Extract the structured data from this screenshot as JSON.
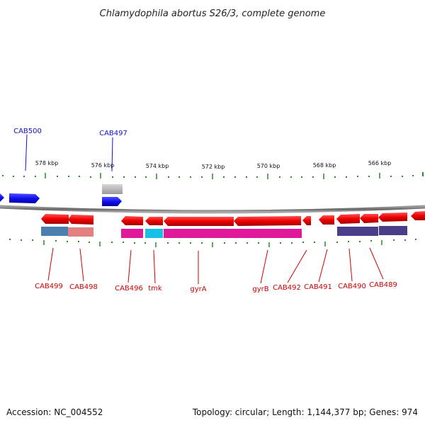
{
  "title": "Chlamydophila abortus S26/3, complete genome",
  "accession": "Accession: NC_004552",
  "topology": "Topology: circular; Length: 1,144,377 bp; Genes: 974",
  "ticks": [
    "578 kbp",
    "576 kbp",
    "574 kbp",
    "572 kbp",
    "570 kbp",
    "568 kbp",
    "566 kbp"
  ],
  "colors": {
    "forward_gene": "#1010ee",
    "reverse_gene": "#ee0000",
    "backbone": "#777777",
    "tick_mark": "#2a8a2a",
    "label_forward": "#1010cc",
    "label_reverse": "#cc0000",
    "cog_steelblue": "#4a7fb0",
    "cog_salmon": "#e08080",
    "cog_magenta": "#e0189a",
    "cog_cyan": "#18c0e8",
    "cog_purple": "#4a3e8a",
    "cog_grey": "#b0b0b0"
  },
  "labels": {
    "forward": [
      "CAB500",
      "CAB497"
    ],
    "reverse": [
      "CAB499",
      "CAB498",
      "CAB496",
      "tmk",
      "gyrA",
      "gyrB",
      "CAB492",
      "CAB491",
      "CAB490",
      "CAB489"
    ]
  }
}
